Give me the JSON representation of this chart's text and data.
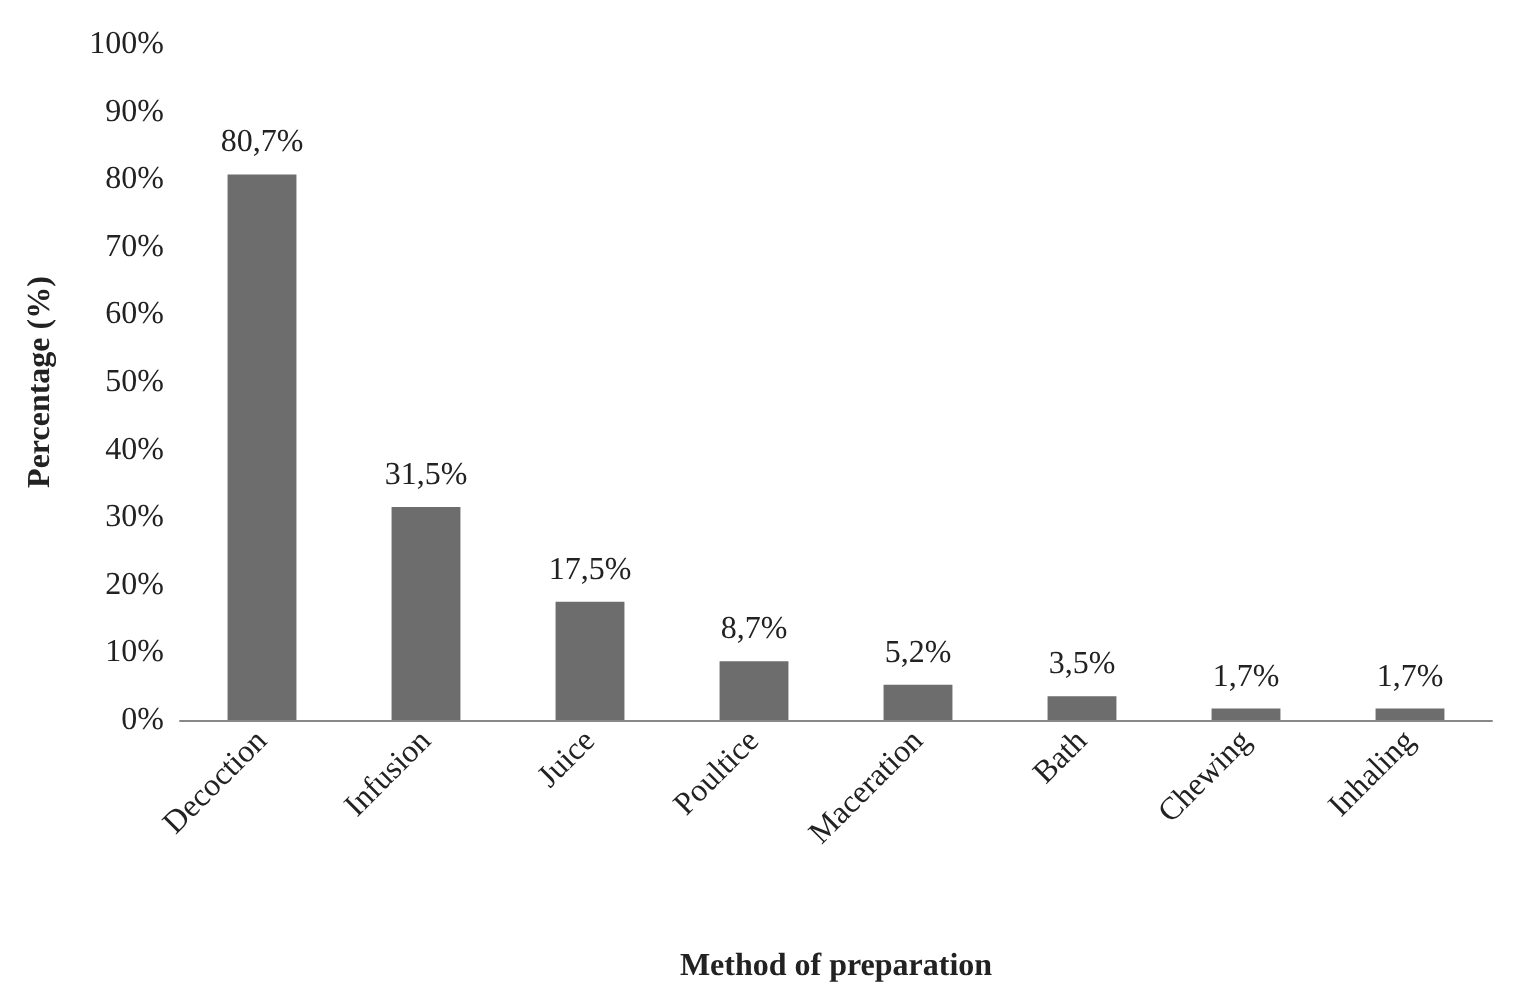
{
  "chart_data": {
    "type": "bar",
    "xlabel": "Method of preparation",
    "ylabel": "Percentage (%)",
    "categories": [
      "Decoction",
      "Infusion",
      "Juice",
      "Poultice",
      "Maceration",
      "Bath",
      "Chewing",
      "Inhaling"
    ],
    "values": [
      80.7,
      31.5,
      17.5,
      8.7,
      5.2,
      3.5,
      1.7,
      1.7
    ],
    "value_labels": [
      "80,7%",
      "31,5%",
      "17,5%",
      "8,7%",
      "5,2%",
      "3,5%",
      "1,7%",
      "1,7%"
    ],
    "color": "#6d6d6d",
    "ylim": [
      0,
      100
    ],
    "yticks": [
      {
        "value": 0,
        "label": "0%"
      },
      {
        "value": 10,
        "label": "10%"
      },
      {
        "value": 20,
        "label": "20%"
      },
      {
        "value": 30,
        "label": "30%"
      },
      {
        "value": 40,
        "label": "40%"
      },
      {
        "value": 50,
        "label": "50%"
      },
      {
        "value": 60,
        "label": "60%"
      },
      {
        "value": 70,
        "label": "70%"
      },
      {
        "value": 80,
        "label": "80%"
      },
      {
        "value": 90,
        "label": "90%"
      },
      {
        "value": 100,
        "label": "100%"
      }
    ],
    "grid": false
  }
}
